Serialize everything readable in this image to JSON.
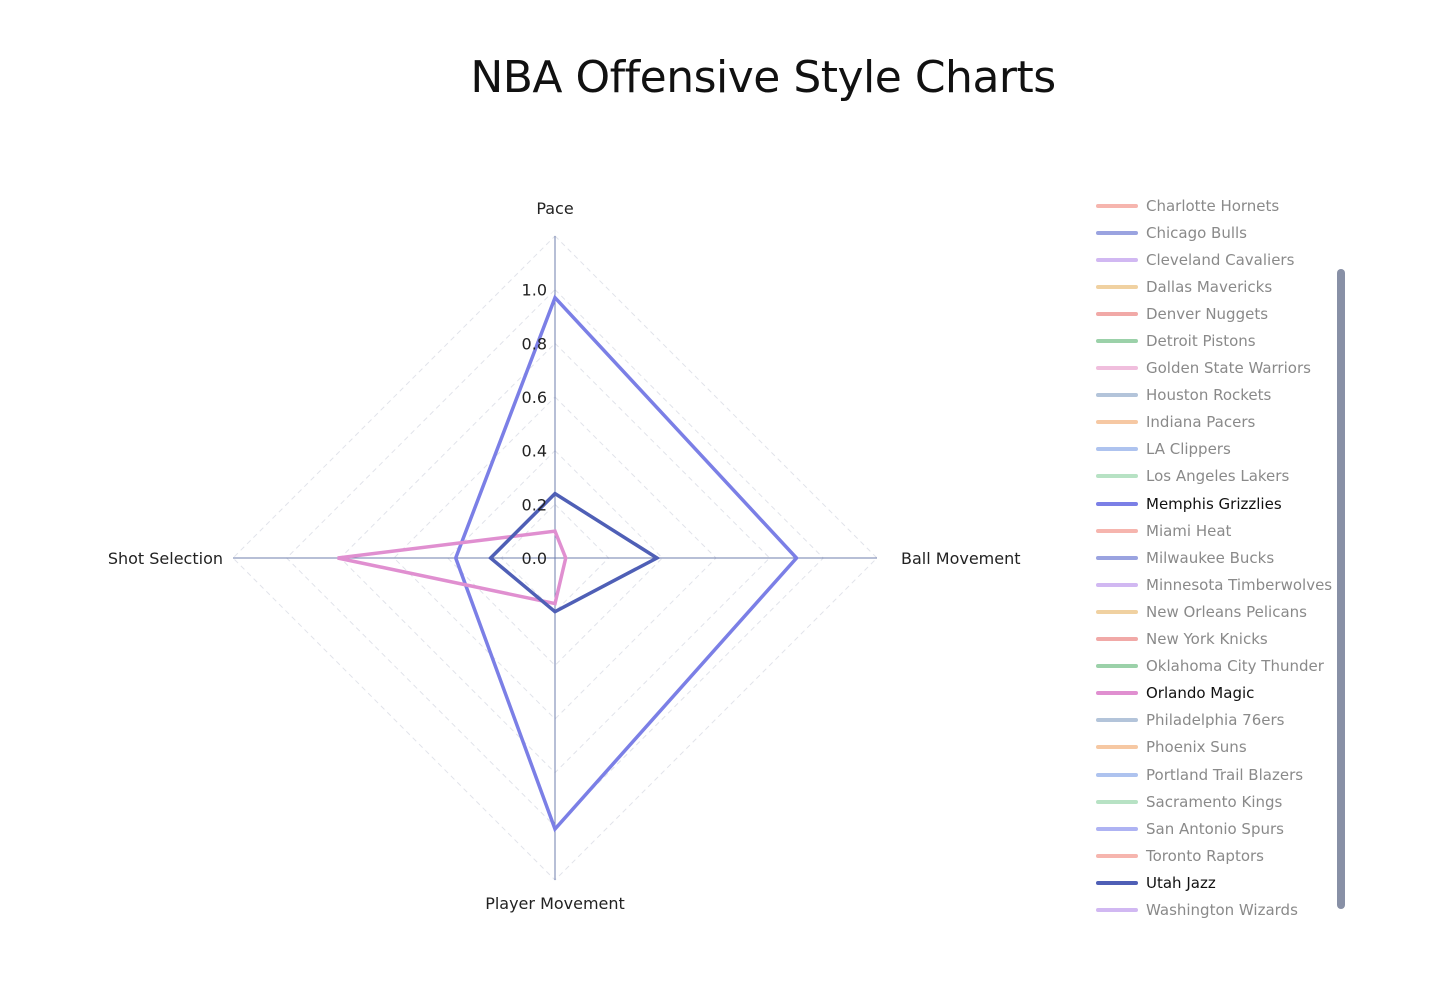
{
  "chart_data": {
    "type": "radar",
    "title": "NBA Offensive Style Charts",
    "axes": [
      "Pace",
      "Ball Movement",
      "Player Movement",
      "Shot Selection"
    ],
    "radial_ticks": [
      "0.0",
      "0.2",
      "0.4",
      "0.6",
      "0.8",
      "1.0"
    ],
    "range": [
      0,
      1.2
    ],
    "visible_series": [
      {
        "name": "Memphis Grizzlies",
        "color": "#7b7fe6",
        "values": [
          0.97,
          0.9,
          1.01,
          0.37
        ]
      },
      {
        "name": "Orlando Magic",
        "color": "#e08fd0",
        "values": [
          0.1,
          0.04,
          0.17,
          0.81
        ]
      },
      {
        "name": "Utah Jazz",
        "color": "#4f5fb6",
        "values": [
          0.24,
          0.38,
          0.2,
          0.24
        ]
      }
    ],
    "legend": [
      {
        "name": "Charlotte Hornets",
        "color": "#f6b5ae",
        "visible": false
      },
      {
        "name": "Chicago Bulls",
        "color": "#9aa3e0",
        "visible": false
      },
      {
        "name": "Cleveland Cavaliers",
        "color": "#d1b8f2",
        "visible": false
      },
      {
        "name": "Dallas Mavericks",
        "color": "#f0d1a1",
        "visible": false
      },
      {
        "name": "Denver Nuggets",
        "color": "#f1a9a7",
        "visible": false
      },
      {
        "name": "Detroit Pistons",
        "color": "#9bd1a9",
        "visible": false
      },
      {
        "name": "Golden State Warriors",
        "color": "#f0bedd",
        "visible": false
      },
      {
        "name": "Houston Rockets",
        "color": "#b3c4da",
        "visible": false
      },
      {
        "name": "Indiana Pacers",
        "color": "#f6c8a3",
        "visible": false
      },
      {
        "name": "LA Clippers",
        "color": "#aec3ef",
        "visible": false
      },
      {
        "name": "Los Angeles Lakers",
        "color": "#b7e2c4",
        "visible": false
      },
      {
        "name": "Memphis Grizzlies",
        "color": "#7b7fe6",
        "visible": true
      },
      {
        "name": "Miami Heat",
        "color": "#f6b5ae",
        "visible": false
      },
      {
        "name": "Milwaukee Bucks",
        "color": "#9aa3e0",
        "visible": false
      },
      {
        "name": "Minnesota Timberwolves",
        "color": "#d1b8f2",
        "visible": false
      },
      {
        "name": "New Orleans Pelicans",
        "color": "#f0d1a1",
        "visible": false
      },
      {
        "name": "New York Knicks",
        "color": "#f1a9a7",
        "visible": false
      },
      {
        "name": "Oklahoma City Thunder",
        "color": "#9bd1a9",
        "visible": false
      },
      {
        "name": "Orlando Magic",
        "color": "#e08fd0",
        "visible": true
      },
      {
        "name": "Philadelphia 76ers",
        "color": "#b3c4da",
        "visible": false
      },
      {
        "name": "Phoenix Suns",
        "color": "#f6c8a3",
        "visible": false
      },
      {
        "name": "Portland Trail Blazers",
        "color": "#aec3ef",
        "visible": false
      },
      {
        "name": "Sacramento Kings",
        "color": "#b7e2c4",
        "visible": false
      },
      {
        "name": "San Antonio Spurs",
        "color": "#aeb3f3",
        "visible": false
      },
      {
        "name": "Toronto Raptors",
        "color": "#f6b5ae",
        "visible": false
      },
      {
        "name": "Utah Jazz",
        "color": "#4f5fb6",
        "visible": true
      },
      {
        "name": "Washington Wizards",
        "color": "#d1b8f2",
        "visible": false
      }
    ],
    "grid": true,
    "legend_position": "right",
    "axis_color": "#6f7fae",
    "grid_color": "#e1e3ea",
    "text_color": "#222222",
    "hidden_text_color": "#8a8a8a"
  }
}
